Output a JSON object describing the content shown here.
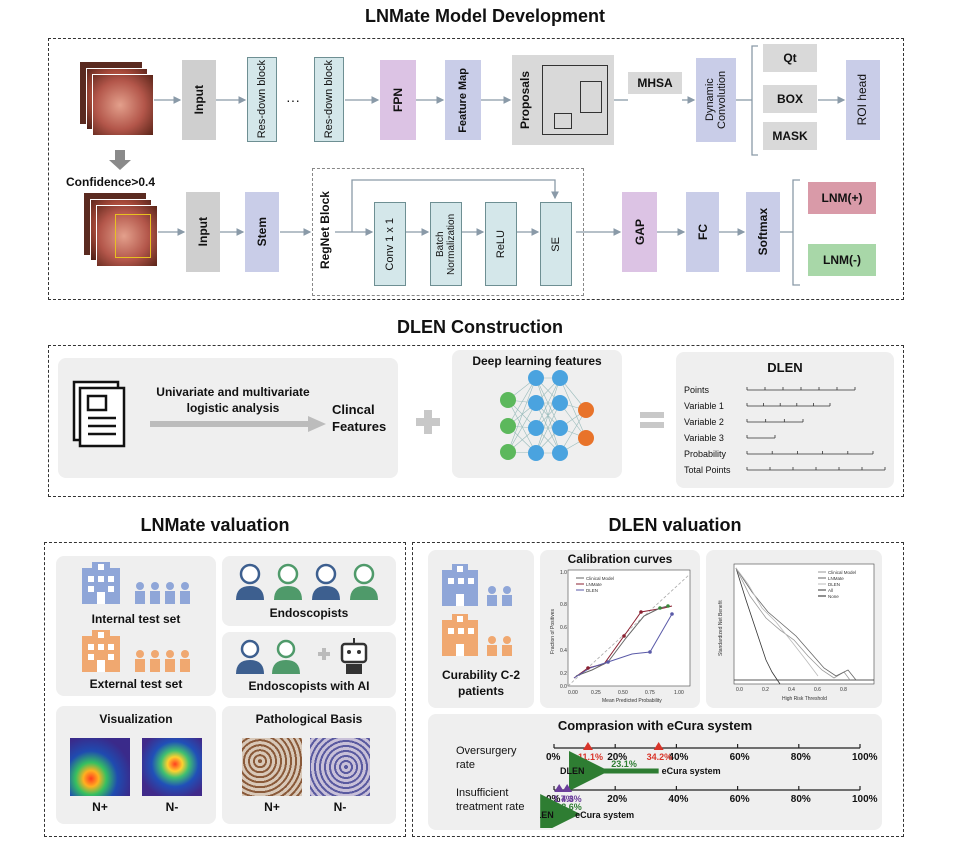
{
  "titles": {
    "dev": "LNMate Model Development",
    "dlen": "DLEN Construction",
    "lnmate_val": "LNMate valuation",
    "dlen_val": "DLEN valuation"
  },
  "dev": {
    "row1": {
      "input": "Input",
      "res1": "Res-down block",
      "dots": "···",
      "res2": "Res-down block",
      "fpn": "FPN",
      "feature_map": "Feature Map",
      "proposals": "Proposals",
      "mhsa": "MHSA",
      "dynconv": "Dynamic Convolution",
      "qt": "Qt",
      "box": "BOX",
      "mask": "MASK",
      "roi": "ROI head"
    },
    "confidence": "Confidence>0.4",
    "row2": {
      "input": "Input",
      "stem": "Stem",
      "regnet": "RegNet Block",
      "conv": "Conv 1 x 1",
      "bn": "Batch Normalization",
      "relu": "ReLU",
      "se": "SE",
      "gap": "GAP",
      "fc": "FC",
      "softmax": "Softmax",
      "lnm_pos": "LNM(+)",
      "lnm_neg": "LNM(-)"
    }
  },
  "dlen": {
    "analysis": "Univariate and multivariate logistic analysis",
    "clinical": "Clincal Features",
    "dl_features": "Deep learning features",
    "nomogram_title": "DLEN",
    "rows": [
      "Points",
      "Variable 1",
      "Variable 2",
      "Variable 3",
      "Probability",
      "Total Points"
    ]
  },
  "lnmate_val": {
    "internal": "Internal test set",
    "external": "External test set",
    "endoscopists": "Endoscopists",
    "endo_ai": "Endoscopists with AI",
    "visualization": "Visualization",
    "pathological": "Pathological Basis",
    "n_pos": "N+",
    "n_neg": "N-"
  },
  "dlen_val": {
    "curability": "Curability C-2 patients",
    "calibration_title": "Calibration curves",
    "calib_xlabel": "Mean Predicted Probability",
    "calib_ylabel": "Fraction of Positives",
    "calib_legend": [
      "Clinical Model",
      "LNMate",
      "DLEN"
    ],
    "dca_xlabel": "High Risk Threshold",
    "dca_ylabel": "Standardized Net Benefit",
    "dca_legend": [
      "Clinical Model",
      "LNMate",
      "DLEN",
      "All",
      "None"
    ],
    "comparison_title": "Comprasion with eCura system",
    "oversurgery": "Oversurgery rate",
    "insufficient": "Insufficient treatment rate",
    "axis_ticks": [
      "0%",
      "20%",
      "40%",
      "60%",
      "80%",
      "100%"
    ],
    "over_dlen": "11.1%",
    "over_ecura": "34.2%",
    "over_diff": "23.1%",
    "insuf_dlen": "1.7%",
    "insuf_ecura": "4.3%",
    "insuf_diff": "2.6%",
    "dlen_label": "DLEN",
    "ecura_label": "eCura system"
  },
  "colors": {
    "gray": "#cfcfcf",
    "blue": "#c9cde8",
    "purple": "#dcc3e4",
    "teal": "#d4e7ea",
    "pink": "#d99aa8",
    "green": "#a8d7a8",
    "arrow_green": "#2e7d32",
    "red_marker": "#d9352a",
    "purple_marker": "#6a3d9a",
    "hospital_blue": "#8fa6d8",
    "hospital_orange": "#f0a870"
  }
}
